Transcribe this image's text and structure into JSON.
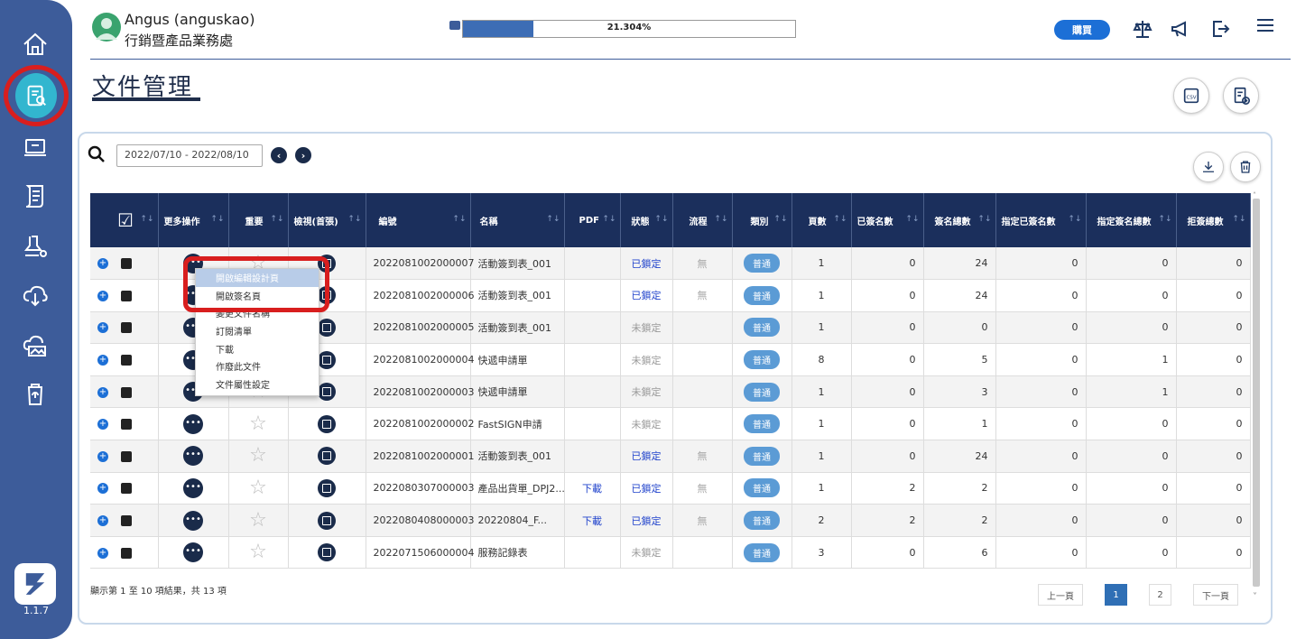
{
  "user": {
    "name": "Angus (anguskao)",
    "dept": "行銷暨產品業務處"
  },
  "quota": {
    "percent_text": "21.304%",
    "fraction": 0.21304
  },
  "header": {
    "buy_label": "購買"
  },
  "page_title": "文件管理",
  "version": "1.1.7",
  "date_range": "2022/07/10 - 2022/08/10",
  "columns": [
    "",
    "更多操作",
    "重要",
    "檢視(首張)",
    "編號",
    "名稱",
    "PDF",
    "狀態",
    "流程",
    "類別",
    "頁數",
    "已簽名數",
    "簽名總數",
    "指定已簽名數",
    "指定簽名總數",
    "拒簽總數"
  ],
  "rows": [
    {
      "id": "2022081002000007",
      "name": "活動簽到表_001",
      "pdf": "",
      "status": "已鎖定",
      "flow": "無",
      "type": "普通",
      "pages": "1",
      "signed": "0",
      "total": "24",
      "asigned": "0",
      "atotal": "0",
      "reject": "0"
    },
    {
      "id": "2022081002000006",
      "name": "活動簽到表_001",
      "pdf": "",
      "status": "已鎖定",
      "flow": "無",
      "type": "普通",
      "pages": "1",
      "signed": "0",
      "total": "24",
      "asigned": "0",
      "atotal": "0",
      "reject": "0"
    },
    {
      "id": "2022081002000005",
      "name": "活動簽到表_001",
      "pdf": "",
      "status": "未鎖定",
      "flow": "",
      "type": "普通",
      "pages": "1",
      "signed": "0",
      "total": "0",
      "asigned": "0",
      "atotal": "0",
      "reject": "0"
    },
    {
      "id": "2022081002000004",
      "name": "快遞申請單",
      "pdf": "",
      "status": "未鎖定",
      "flow": "",
      "type": "普通",
      "pages": "8",
      "signed": "0",
      "total": "5",
      "asigned": "0",
      "atotal": "1",
      "reject": "0"
    },
    {
      "id": "2022081002000003",
      "name": "快遞申請單",
      "pdf": "",
      "status": "未鎖定",
      "flow": "",
      "type": "普通",
      "pages": "1",
      "signed": "0",
      "total": "3",
      "asigned": "0",
      "atotal": "1",
      "reject": "0"
    },
    {
      "id": "2022081002000002",
      "name": "FastSIGN申請",
      "pdf": "",
      "status": "未鎖定",
      "flow": "",
      "type": "普通",
      "pages": "1",
      "signed": "0",
      "total": "1",
      "asigned": "0",
      "atotal": "0",
      "reject": "0"
    },
    {
      "id": "2022081002000001",
      "name": "活動簽到表_001",
      "pdf": "",
      "status": "已鎖定",
      "flow": "無",
      "type": "普通",
      "pages": "1",
      "signed": "0",
      "total": "24",
      "asigned": "0",
      "atotal": "0",
      "reject": "0"
    },
    {
      "id": "2022080307000003",
      "name": "產品出貨單_DPJ2...",
      "pdf": "下載",
      "status": "已鎖定",
      "flow": "無",
      "type": "普通",
      "pages": "1",
      "signed": "2",
      "total": "2",
      "asigned": "0",
      "atotal": "0",
      "reject": "0"
    },
    {
      "id": "2022080408000003",
      "name": "20220804_F...",
      "pdf": "下載",
      "status": "已鎖定",
      "flow": "無",
      "type": "普通",
      "pages": "2",
      "signed": "2",
      "total": "2",
      "asigned": "0",
      "atotal": "0",
      "reject": "0"
    },
    {
      "id": "2022071506000004",
      "name": "服務記錄表",
      "pdf": "",
      "status": "未鎖定",
      "flow": "",
      "type": "普通",
      "pages": "3",
      "signed": "0",
      "total": "6",
      "asigned": "0",
      "atotal": "0",
      "reject": "0"
    }
  ],
  "context_menu": [
    "開啟編輯設計頁",
    "開啟簽名頁",
    "變更文件名稱",
    "訂閱清單",
    "下載",
    "作廢此文件",
    "文件屬性設定"
  ],
  "footer": {
    "summary": "顯示第 1 至 10 項結果，共 13 項",
    "prev": "上一頁",
    "page1": "1",
    "page2": "2",
    "next": "下一頁"
  },
  "colors": {
    "sidebar": "#3d5c9a",
    "header_row": "#1b2f5c",
    "accent": "#1c6fd6",
    "highlight": "#d81e1e"
  }
}
